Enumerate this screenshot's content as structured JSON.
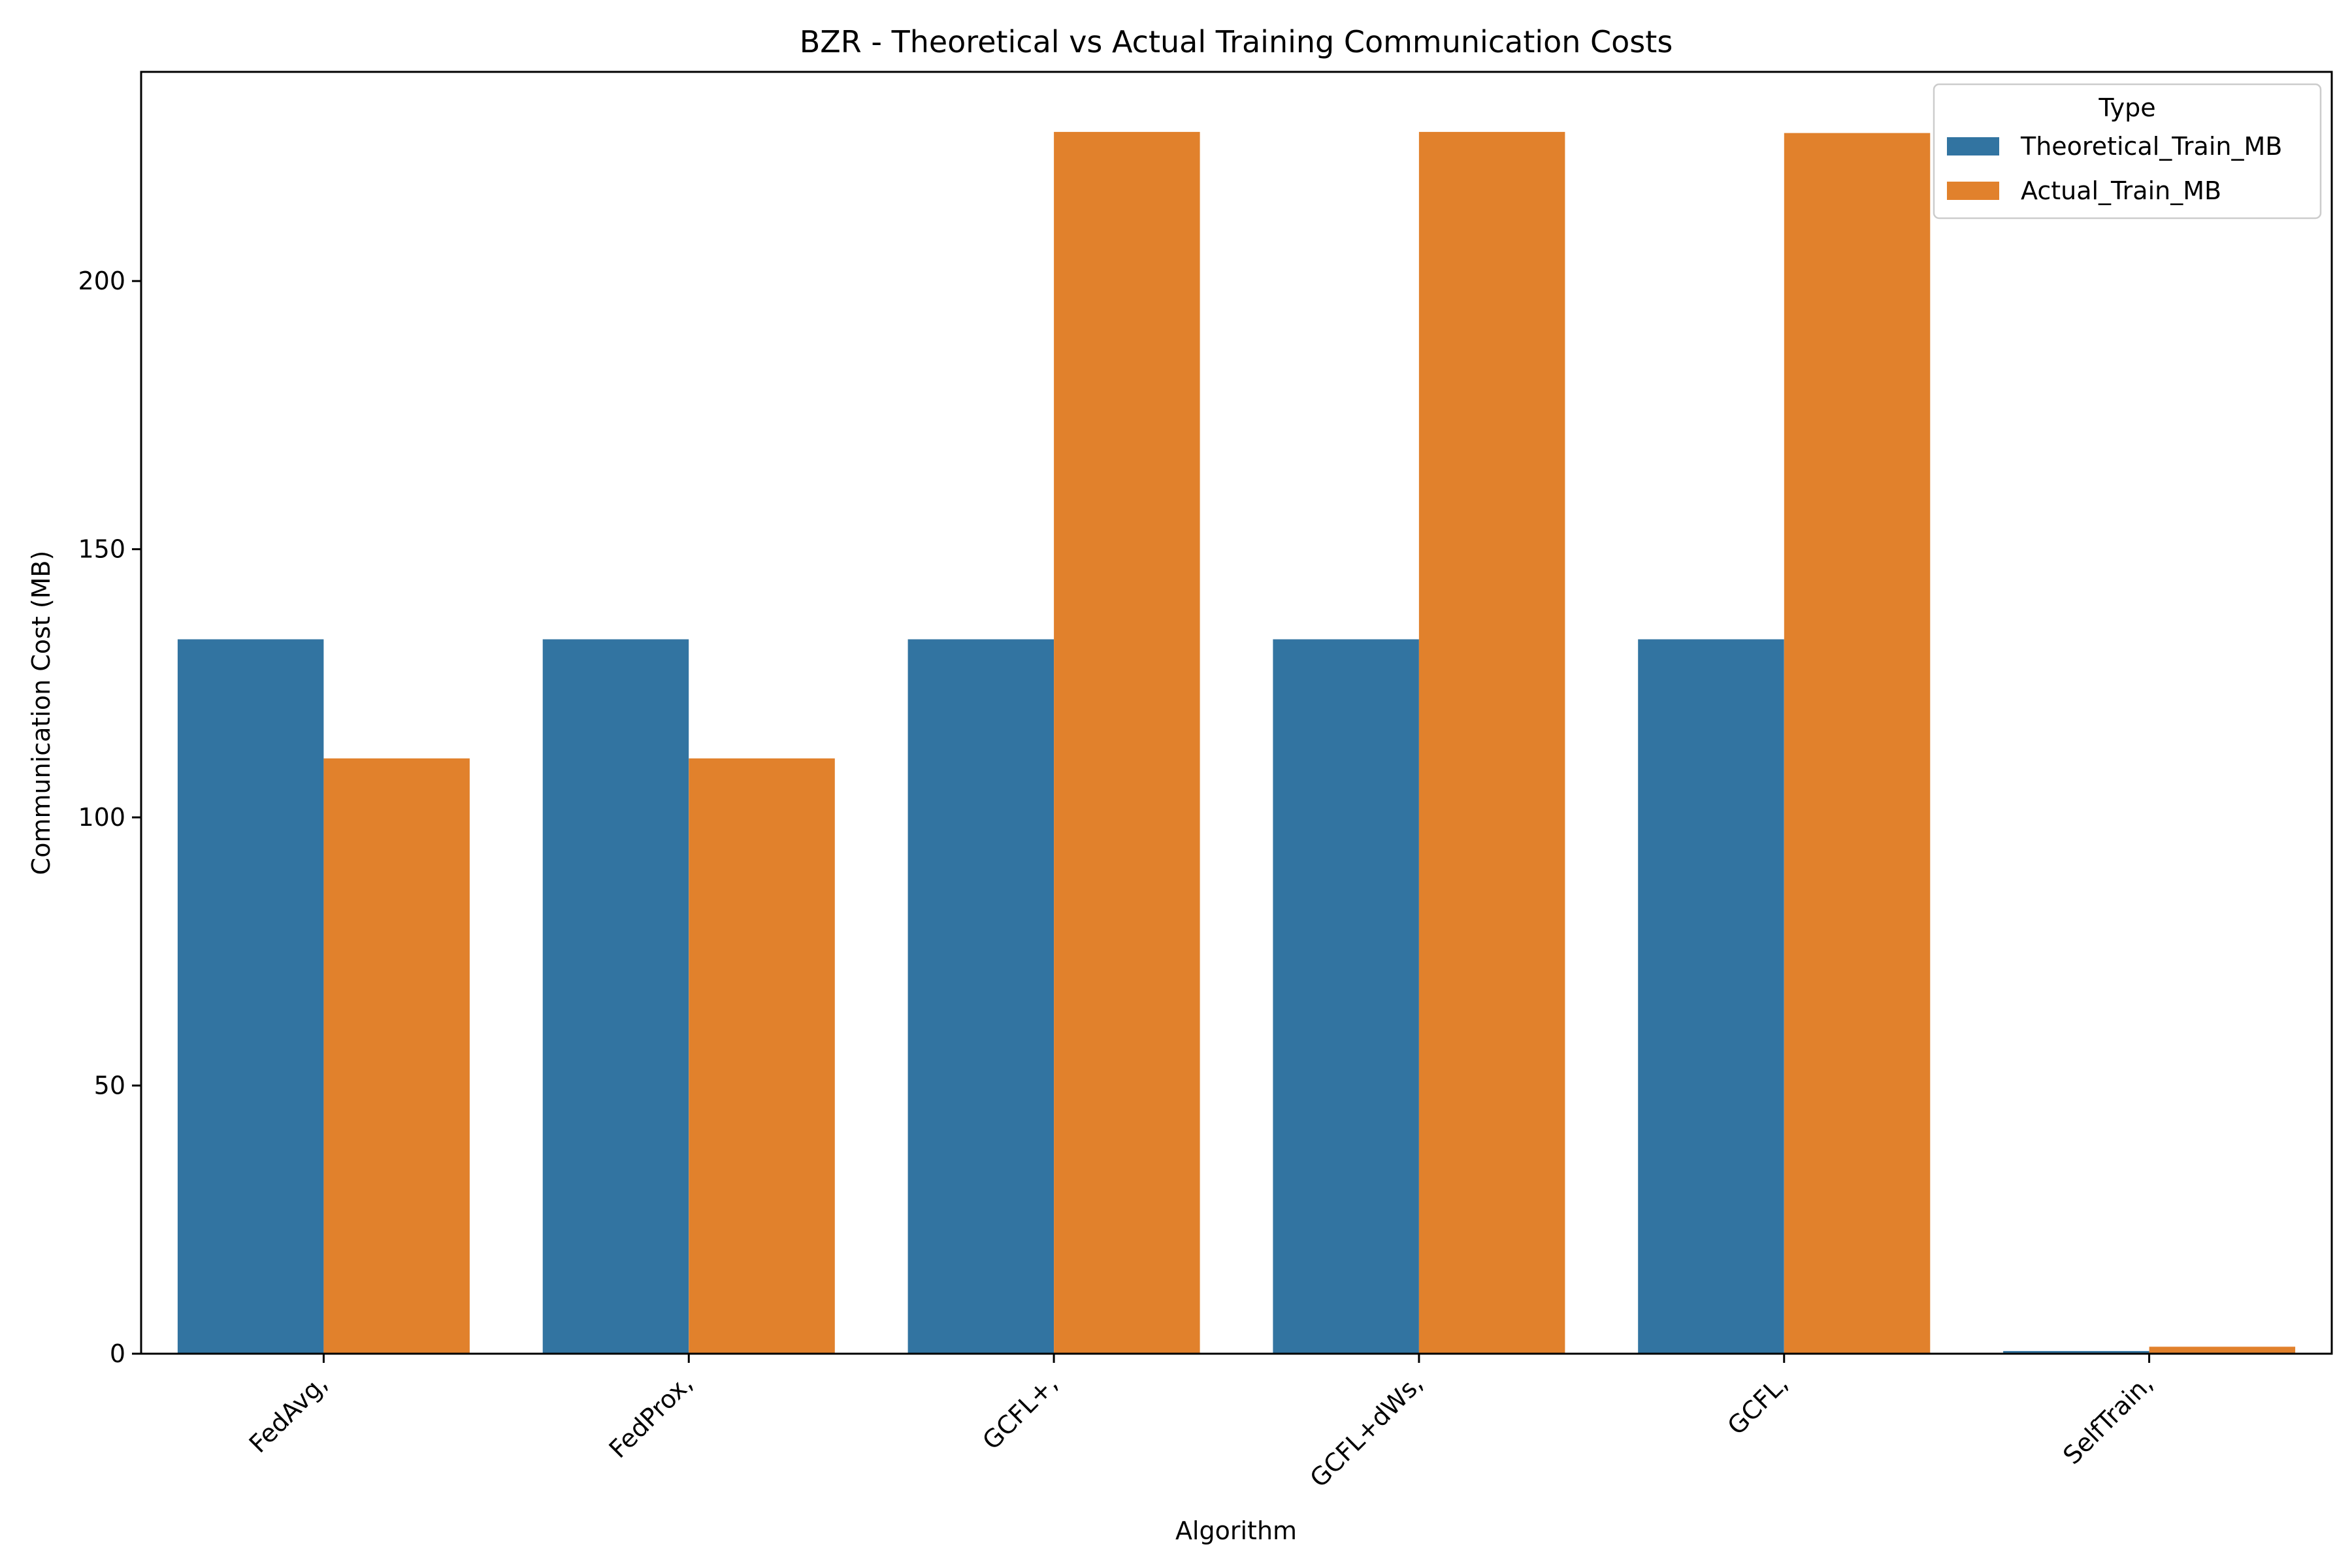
{
  "chart_data": {
    "type": "bar",
    "title": "BZR - Theoretical vs Actual Training Communication Costs",
    "xlabel": "Algorithm",
    "ylabel": "Communication Cost (MB)",
    "categories": [
      "FedAvg,",
      "FedProx,",
      "GCFL+,",
      "GCFL+dWs,",
      "GCFL,",
      "SelfTrain,"
    ],
    "series": [
      {
        "name": "Theoretical_Train_MB",
        "color": "#3274a1",
        "values": [
          133.2,
          133.2,
          133.2,
          133.2,
          133.2,
          0.5
        ]
      },
      {
        "name": "Actual_Train_MB",
        "color": "#e1812c",
        "values": [
          111.0,
          111.0,
          227.8,
          227.8,
          227.6,
          1.3
        ]
      }
    ],
    "ylim": [
      0,
      239
    ],
    "yticks": [
      0,
      50,
      100,
      150,
      200
    ],
    "legend": {
      "title": "Type",
      "placement": "top-right"
    },
    "grid": false
  }
}
